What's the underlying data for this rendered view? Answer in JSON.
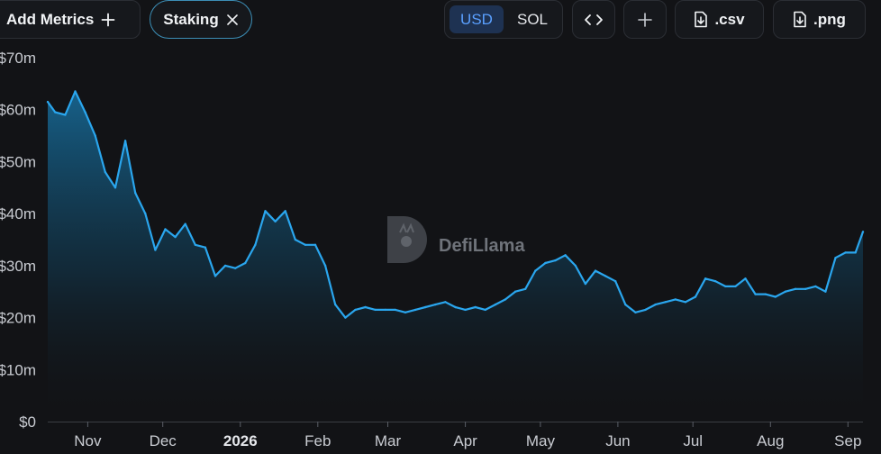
{
  "toolbar": {
    "add_metrics_label": "Add Metrics",
    "metric_chip_label": "Staking",
    "currency_options": [
      "USD",
      "SOL"
    ],
    "selected_currency": "USD",
    "csv_label": ".csv",
    "png_label": ".png"
  },
  "watermark": "DefiLlama",
  "colors": {
    "line": "#2aa6ee",
    "background": "#121316",
    "selected_currency": "#5aa0ff"
  },
  "chart_data": {
    "type": "area",
    "series": [
      {
        "x": [
          "2025-10-16",
          "2025-10-19",
          "2025-10-23",
          "2025-10-27",
          "2025-10-31",
          "2025-11-04",
          "2025-11-08",
          "2025-11-12",
          "2025-11-16",
          "2025-11-20",
          "2025-11-24",
          "2025-11-28",
          "2025-12-02",
          "2025-12-06",
          "2025-12-10",
          "2025-12-14",
          "2025-12-18",
          "2025-12-22",
          "2025-12-26",
          "2025-12-30",
          "2026-01-03",
          "2026-01-07",
          "2026-01-11",
          "2026-01-15",
          "2026-01-19",
          "2026-01-23",
          "2026-01-27",
          "2026-01-31",
          "2026-02-04",
          "2026-02-08",
          "2026-02-12",
          "2026-02-16",
          "2026-02-20",
          "2026-02-24",
          "2026-02-28",
          "2026-03-04",
          "2026-03-08",
          "2026-03-12",
          "2026-03-16",
          "2026-03-20",
          "2026-03-24",
          "2026-03-28",
          "2026-04-01",
          "2026-04-05",
          "2026-04-09",
          "2026-04-13",
          "2026-04-17",
          "2026-04-21",
          "2026-04-25",
          "2026-04-29",
          "2026-05-03",
          "2026-05-07",
          "2026-05-11",
          "2026-05-15",
          "2026-05-19",
          "2026-05-23",
          "2026-05-27",
          "2026-05-31",
          "2026-06-04",
          "2026-06-08",
          "2026-06-12",
          "2026-06-16",
          "2026-06-20",
          "2026-06-24",
          "2026-06-28",
          "2026-07-02",
          "2026-07-06",
          "2026-07-10",
          "2026-07-14",
          "2026-07-18",
          "2026-07-22",
          "2026-07-26",
          "2026-07-30",
          "2026-08-03",
          "2026-08-07",
          "2026-08-11",
          "2026-08-15",
          "2026-08-19",
          "2026-08-23",
          "2026-08-27",
          "2026-08-31",
          "2026-09-04",
          "2026-09-07"
        ],
        "values": [
          61.5,
          59.5,
          59,
          63.5,
          59.5,
          55,
          48,
          45,
          54,
          44,
          40,
          33,
          37,
          35.5,
          38,
          34,
          33.5,
          28,
          30,
          29.5,
          30.5,
          34,
          40.5,
          38.5,
          40.5,
          35,
          34,
          34,
          30,
          22.5,
          20,
          21.5,
          22,
          21.5,
          21.5,
          21.5,
          21,
          21.5,
          22,
          22.5,
          23,
          22,
          21.5,
          22,
          21.5,
          22.5,
          23.5,
          25,
          25.5,
          29,
          30.5,
          31,
          32,
          30,
          26.5,
          29,
          28,
          27,
          22.5,
          21,
          21.5,
          22.5,
          23,
          23.5,
          23,
          24,
          27.5,
          27,
          26,
          26,
          27.5,
          24.5,
          24.5,
          24,
          25,
          25.5,
          25.5,
          26,
          25,
          31.5,
          32.5,
          32.5,
          36.5
        ]
      }
    ],
    "x_tick_labels": [
      "Nov",
      "Dec",
      "2026",
      "Feb",
      "Mar",
      "Apr",
      "May",
      "Jun",
      "Jul",
      "Aug",
      "Sep"
    ],
    "y_tick_labels": [
      "$0",
      "$10m",
      "$20m",
      "$30m",
      "$40m",
      "$50m",
      "$60m",
      "$70m"
    ],
    "ylim": [
      0,
      70
    ],
    "xlim": [
      "2025-10-16",
      "2026-09-07"
    ],
    "title": "",
    "xlabel": "",
    "ylabel": "",
    "grid": false,
    "legend": "none"
  }
}
